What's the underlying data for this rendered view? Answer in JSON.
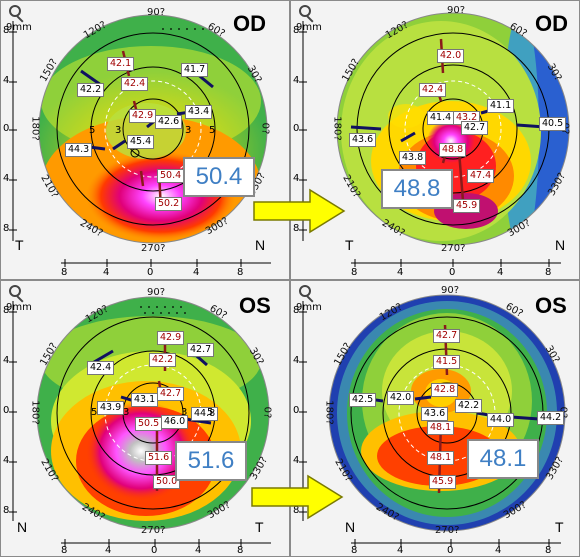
{
  "panels": [
    {
      "id": "od-pre",
      "eye": "OD",
      "scale": "9mm",
      "left_label": "T",
      "right_label": "N",
      "angles": {
        "a90": "90?",
        "a60": "60?",
        "a30": "30?",
        "a0": "0?",
        "a330": "330?",
        "a300": "300?",
        "a270": "270?",
        "a240": "240?",
        "a210": "210?",
        "a180": "180?",
        "a150": "150?",
        "a120": "120?"
      },
      "y_ticks": [
        "8",
        "4",
        "0",
        "4",
        "8"
      ],
      "x_ticks": [
        "8",
        "4",
        "0",
        "4",
        "8"
      ],
      "big_value": "50.4",
      "k": {
        "k1": "42.1",
        "k2": "41.7",
        "k3": "42.2",
        "k4": "42.4",
        "k5": "42.9",
        "k6": "43.4",
        "k7": "42.6",
        "k8": "44.3",
        "k9": "45.4",
        "k10": "50.4",
        "k11": "50.2"
      },
      "rings": {
        "r1": "3",
        "r2": "5",
        "r3": "3",
        "r4": "5"
      }
    },
    {
      "id": "od-post",
      "eye": "OD",
      "scale": "9mm",
      "left_label": "T",
      "right_label": "N",
      "angles": {
        "a90": "90?",
        "a60": "60?",
        "a30": "30?",
        "a0": "0?",
        "a330": "330?",
        "a300": "300?",
        "a270": "270?",
        "a240": "240?",
        "a210": "210?",
        "a180": "180?",
        "a150": "150?",
        "a120": "120?"
      },
      "y_ticks": [
        "8",
        "4",
        "0",
        "4",
        "8"
      ],
      "x_ticks": [
        "8",
        "4",
        "0",
        "4",
        "8"
      ],
      "big_value": "48.8",
      "k": {
        "k1": "42.0",
        "k2": "42.4",
        "k3": "41.1",
        "k4": "41.4",
        "k5": "43.2",
        "k6": "42.7",
        "k7": "40.5",
        "k8": "43.6",
        "k9": "43.8",
        "k10": "48.8",
        "k11": "47.4",
        "k12": "45.9"
      }
    },
    {
      "id": "os-pre",
      "eye": "OS",
      "scale": "9mm",
      "left_label": "N",
      "right_label": "T",
      "angles": {
        "a90": "90?",
        "a60": "60?",
        "a30": "30?",
        "a0": "0?",
        "a330": "330?",
        "a300": "300?",
        "a270": "270?",
        "a240": "240?",
        "a210": "210?",
        "a180": "180?",
        "a150": "150?",
        "a120": "120?"
      },
      "y_ticks": [
        "8",
        "4",
        "0",
        "4",
        "8"
      ],
      "x_ticks": [
        "8",
        "4",
        "0",
        "4",
        "8"
      ],
      "big_value": "51.6",
      "k": {
        "k1": "42.9",
        "k2": "42.7",
        "k3": "42.4",
        "k4": "42.2",
        "k5": "42.7",
        "k6": "43.1",
        "k7": "43.9",
        "k8": "46.0",
        "k9": "44.8",
        "k10": "50.5",
        "k11": "51.6",
        "k12": "50.0"
      },
      "rings": {
        "r1": "5",
        "r2": "3",
        "r3": "3",
        "r4": "5"
      }
    },
    {
      "id": "os-post",
      "eye": "OS",
      "scale": "9mm",
      "left_label": "N",
      "right_label": "T",
      "angles": {
        "a90": "90?",
        "a60": "60?",
        "a30": "30?",
        "a0": "0?",
        "a330": "330?",
        "a300": "300?",
        "a270": "270?",
        "a240": "240?",
        "a210": "210?",
        "a180": "180?",
        "a150": "150?",
        "a120": "120?"
      },
      "y_ticks": [
        "8",
        "4",
        "0",
        "4",
        "8"
      ],
      "x_ticks": [
        "8",
        "4",
        "0",
        "4",
        "8"
      ],
      "big_value": "48.1",
      "k": {
        "k1": "42.7",
        "k2": "41.5",
        "k3": "42.8",
        "k4": "42.5",
        "k5": "42.0",
        "k6": "43.6",
        "k7": "42.2",
        "k8": "44.0",
        "k9": "44.2",
        "k10": "48.1",
        "k11": "48.1",
        "k12": "45.9"
      }
    }
  ],
  "colors": {
    "arrow": "#ffff00",
    "arrow_stroke": "#7a7a00",
    "big_text": "#3f7fc4"
  }
}
